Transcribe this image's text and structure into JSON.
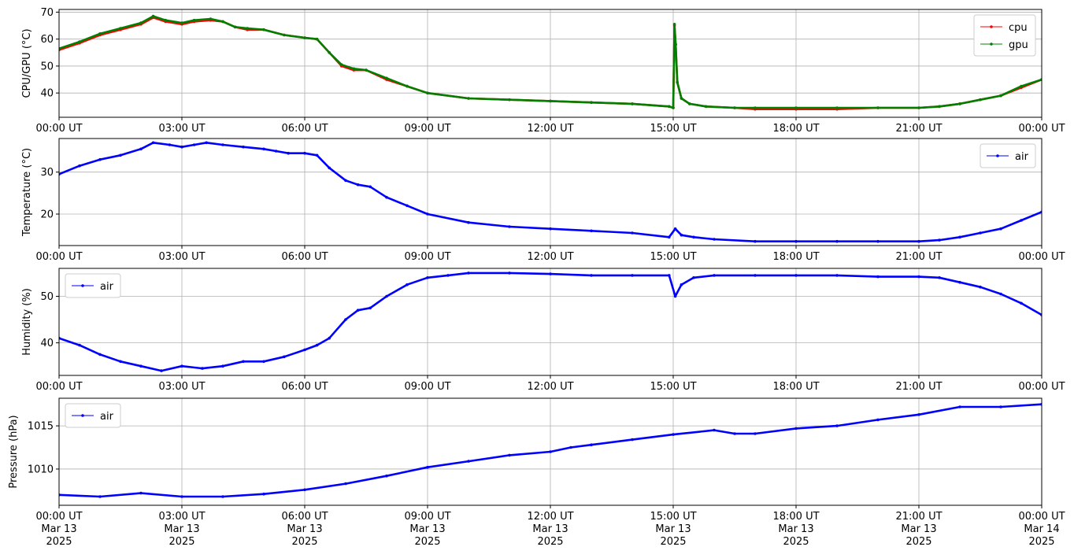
{
  "chart_data": [
    {
      "type": "line",
      "ylabel": "CPU/GPU (°C)",
      "ylim": [
        31,
        71
      ],
      "yticks": [
        40,
        50,
        60,
        70
      ],
      "grid": true,
      "legend_position": "top-right",
      "x_ticks": [
        "00:00 UT",
        "03:00 UT",
        "06:00 UT",
        "09:00 UT",
        "12:00 UT",
        "15:00 UT",
        "18:00 UT",
        "21:00 UT",
        "00:00 UT"
      ],
      "xlim_hours": [
        0,
        24
      ],
      "series": [
        {
          "name": "cpu",
          "color": "#ff0000",
          "x_hours": [
            0,
            0.5,
            1,
            1.5,
            2,
            2.3,
            2.6,
            3,
            3.3,
            3.7,
            4,
            4.3,
            4.6,
            5,
            5.5,
            6,
            6.3,
            6.6,
            6.9,
            7.2,
            7.5,
            8,
            8.5,
            9,
            10,
            11,
            12,
            13,
            14,
            14.9,
            15.0,
            15.03,
            15.06,
            15.1,
            15.2,
            15.4,
            15.8,
            16.5,
            17,
            18,
            19,
            20,
            21,
            21.5,
            22,
            22.5,
            23,
            23.5,
            24
          ],
          "y": [
            56,
            58.5,
            61.5,
            63.5,
            65.5,
            68,
            66.5,
            65.5,
            66.5,
            67,
            66.5,
            64.5,
            63.5,
            63.5,
            61.5,
            60.5,
            60,
            55,
            50,
            48.5,
            48.5,
            45,
            42.5,
            40,
            38,
            37.5,
            37,
            36.5,
            36,
            35,
            34.5,
            65,
            58,
            44,
            38,
            36,
            35,
            34.5,
            34,
            34,
            34,
            34.5,
            34.5,
            35,
            36,
            37.5,
            39,
            42,
            45
          ]
        },
        {
          "name": "gpu",
          "color": "#008000",
          "x_hours": [
            0,
            0.5,
            1,
            1.5,
            2,
            2.3,
            2.6,
            3,
            3.3,
            3.7,
            4,
            4.3,
            4.6,
            5,
            5.5,
            6,
            6.3,
            6.6,
            6.9,
            7.2,
            7.5,
            8,
            8.5,
            9,
            10,
            11,
            12,
            13,
            14,
            14.9,
            15.0,
            15.03,
            15.06,
            15.1,
            15.2,
            15.4,
            15.8,
            16.5,
            17,
            18,
            19,
            20,
            21,
            21.5,
            22,
            22.5,
            23,
            23.5,
            24
          ],
          "y": [
            56.5,
            59,
            62,
            64,
            66,
            68.5,
            67,
            66,
            67,
            67.5,
            66.5,
            64.5,
            64,
            63.5,
            61.5,
            60.5,
            60,
            55,
            50.5,
            49,
            48.5,
            45.5,
            42.5,
            40,
            38,
            37.5,
            37,
            36.5,
            36,
            35,
            34.5,
            65.5,
            58,
            44,
            38,
            36,
            35,
            34.5,
            34.5,
            34.5,
            34.5,
            34.5,
            34.5,
            35,
            36,
            37.5,
            39,
            42.5,
            45
          ]
        }
      ]
    },
    {
      "type": "line",
      "ylabel": "Temperature (°C)",
      "ylim": [
        12.5,
        38
      ],
      "yticks": [
        20,
        30
      ],
      "grid": true,
      "legend_position": "top-right",
      "x_ticks": [
        "00:00 UT",
        "03:00 UT",
        "06:00 UT",
        "09:00 UT",
        "12:00 UT",
        "15:00 UT",
        "18:00 UT",
        "21:00 UT",
        "00:00 UT"
      ],
      "xlim_hours": [
        0,
        24
      ],
      "series": [
        {
          "name": "air",
          "color": "#0000ff",
          "x_hours": [
            0,
            0.5,
            1,
            1.5,
            2,
            2.3,
            2.7,
            3,
            3.3,
            3.6,
            4,
            4.5,
            5,
            5.3,
            5.6,
            6,
            6.3,
            6.6,
            7,
            7.3,
            7.6,
            8,
            8.5,
            9,
            10,
            11,
            12,
            13,
            14,
            14.9,
            15.05,
            15.2,
            15.5,
            16,
            17,
            18,
            19,
            20,
            21,
            21.5,
            22,
            22.5,
            23,
            23.5,
            24
          ],
          "y": [
            29.5,
            31.5,
            33,
            34,
            35.5,
            37,
            36.5,
            36,
            36.5,
            37,
            36.5,
            36,
            35.5,
            35,
            34.5,
            34.5,
            34,
            31,
            28,
            27,
            26.5,
            24,
            22,
            20,
            18,
            17,
            16.5,
            16,
            15.5,
            14.5,
            16.5,
            15,
            14.5,
            14,
            13.5,
            13.5,
            13.5,
            13.5,
            13.5,
            13.8,
            14.5,
            15.5,
            16.5,
            18.5,
            20.5
          ]
        }
      ]
    },
    {
      "type": "line",
      "ylabel": "Humidity (%)",
      "ylim": [
        33,
        56
      ],
      "yticks": [
        40,
        50
      ],
      "grid": true,
      "legend_position": "top-left",
      "x_ticks": [
        "00:00 UT",
        "03:00 UT",
        "06:00 UT",
        "09:00 UT",
        "12:00 UT",
        "15:00 UT",
        "18:00 UT",
        "21:00 UT",
        "00:00 UT"
      ],
      "xlim_hours": [
        0,
        24
      ],
      "series": [
        {
          "name": "air",
          "color": "#0000ff",
          "x_hours": [
            0,
            0.5,
            1,
            1.5,
            2,
            2.5,
            3,
            3.5,
            4,
            4.5,
            5,
            5.5,
            6,
            6.3,
            6.6,
            7,
            7.3,
            7.6,
            8,
            8.5,
            9,
            9.5,
            10,
            11,
            12,
            13,
            14,
            14.9,
            15.05,
            15.2,
            15.5,
            16,
            17,
            18,
            19,
            20,
            21,
            21.5,
            22,
            22.5,
            23,
            23.5,
            24
          ],
          "y": [
            41,
            39.5,
            37.5,
            36,
            35,
            34,
            35,
            34.5,
            35,
            36,
            36,
            37,
            38.5,
            39.5,
            41,
            45,
            47,
            47.5,
            50,
            52.5,
            54,
            54.5,
            55,
            55,
            54.8,
            54.5,
            54.5,
            54.5,
            50,
            52.5,
            54,
            54.5,
            54.5,
            54.5,
            54.5,
            54.2,
            54.2,
            54,
            53,
            52,
            50.5,
            48.5,
            46
          ]
        }
      ]
    },
    {
      "type": "line",
      "ylabel": "Pressure (hPa)",
      "ylim": [
        1005.8,
        1018.2
      ],
      "yticks": [
        1010,
        1015
      ],
      "grid": true,
      "legend_position": "top-left",
      "x_ticks": [
        "00:00 UT\nMar 13\n2025",
        "03:00 UT\nMar 13\n2025",
        "06:00 UT\nMar 13\n2025",
        "09:00 UT\nMar 13\n2025",
        "12:00 UT\nMar 13\n2025",
        "15:00 UT\nMar 13\n2025",
        "18:00 UT\nMar 13\n2025",
        "21:00 UT\nMar 13\n2025",
        "00:00 UT\nMar 14\n2025"
      ],
      "xlim_hours": [
        0,
        24
      ],
      "series": [
        {
          "name": "air",
          "color": "#0000ff",
          "x_hours": [
            0,
            1,
            2,
            3,
            4,
            5,
            6,
            7,
            8,
            9,
            10,
            11,
            12,
            12.5,
            13,
            14,
            15,
            16,
            16.5,
            17,
            18,
            19,
            20,
            21,
            22,
            23,
            24
          ],
          "y": [
            1007,
            1006.8,
            1007.2,
            1006.8,
            1006.8,
            1007.1,
            1007.6,
            1008.3,
            1009.2,
            1010.2,
            1010.9,
            1011.6,
            1012,
            1012.5,
            1012.8,
            1013.4,
            1014,
            1014.5,
            1014.1,
            1014.1,
            1014.7,
            1015,
            1015.7,
            1016.3,
            1017.2,
            1017.2,
            1017.5
          ]
        }
      ]
    }
  ]
}
